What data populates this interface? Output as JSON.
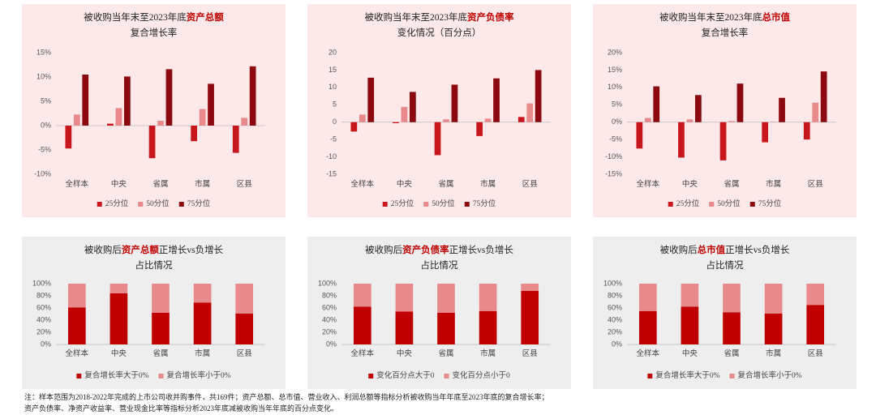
{
  "chart_data": [
    {
      "type": "bar",
      "background": "#fde9e9",
      "title_lines": [
        [
          {
            "text": "被收购当年末至2023年底",
            "highlight": false
          },
          {
            "text": "资产总额",
            "highlight": true
          }
        ],
        [
          {
            "text": "复合增长率",
            "highlight": false
          }
        ]
      ],
      "categories": [
        "全样本",
        "中央",
        "省属",
        "市属",
        "区县"
      ],
      "series": [
        {
          "name": "25分位",
          "color": "#c8171c",
          "values": [
            -4.7,
            0.4,
            -6.7,
            -3.2,
            -5.6
          ]
        },
        {
          "name": "50分位",
          "color": "#e8898b",
          "values": [
            2.3,
            3.6,
            1.0,
            3.4,
            1.6
          ]
        },
        {
          "name": "75分位",
          "color": "#8c0a0f",
          "values": [
            10.5,
            10.1,
            11.6,
            8.6,
            12.2
          ]
        }
      ],
      "ylim": [
        -10,
        15
      ],
      "yticks": [
        {
          "value": -10,
          "label": "-10%"
        },
        {
          "value": -5,
          "label": "-5%"
        },
        {
          "value": 0,
          "label": "0%"
        },
        {
          "value": 5,
          "label": "5%"
        },
        {
          "value": 10,
          "label": "10%"
        },
        {
          "value": 15,
          "label": "15%"
        }
      ]
    },
    {
      "type": "bar",
      "background": "#fde9e9",
      "title_lines": [
        [
          {
            "text": "被收购当年末至2023年底",
            "highlight": false
          },
          {
            "text": "资产负债率",
            "highlight": true
          }
        ],
        [
          {
            "text": "变化情况（百分点）",
            "highlight": false
          }
        ]
      ],
      "categories": [
        "全样本",
        "中央",
        "省属",
        "市属",
        "区县"
      ],
      "series": [
        {
          "name": "25分位",
          "color": "#c8171c",
          "values": [
            -2.7,
            -0.3,
            -9.5,
            -4.0,
            1.5
          ]
        },
        {
          "name": "50分位",
          "color": "#e8898b",
          "values": [
            2.2,
            4.4,
            0.8,
            1.0,
            5.4
          ]
        },
        {
          "name": "75分位",
          "color": "#8c0a0f",
          "values": [
            12.8,
            8.7,
            10.8,
            12.6,
            15.0
          ]
        }
      ],
      "ylim": [
        -15,
        20
      ],
      "yticks": [
        -15,
        -10,
        -5,
        0,
        5,
        10,
        15,
        20
      ]
    },
    {
      "type": "bar",
      "background": "#fde9e9",
      "title_lines": [
        [
          {
            "text": "被收购当年末至2023年底",
            "highlight": false
          },
          {
            "text": "总市值",
            "highlight": true
          }
        ],
        [
          {
            "text": "复合增长率",
            "highlight": false
          }
        ]
      ],
      "categories": [
        "全样本",
        "中央",
        "省属",
        "市属",
        "区县"
      ],
      "series": [
        {
          "name": "25分位",
          "color": "#c8171c",
          "values": [
            -7.6,
            -10.2,
            -11.0,
            -5.8,
            -5.0
          ]
        },
        {
          "name": "50分位",
          "color": "#e8898b",
          "values": [
            1.2,
            0.8,
            0.3,
            0.1,
            5.6
          ]
        },
        {
          "name": "75分位",
          "color": "#8c0a0f",
          "values": [
            10.3,
            7.8,
            11.1,
            7.0,
            14.6
          ]
        }
      ],
      "ylim": [
        -15,
        20
      ],
      "yticks": [
        {
          "value": -15,
          "label": "-15%"
        },
        {
          "value": -10,
          "label": "-10%"
        },
        {
          "value": -5,
          "label": "-5%"
        },
        {
          "value": 0,
          "label": "0%"
        },
        {
          "value": 5,
          "label": "5%"
        },
        {
          "value": 10,
          "label": "10%"
        },
        {
          "value": 15,
          "label": "15%"
        },
        {
          "value": 20,
          "label": "20%"
        }
      ]
    },
    {
      "type": "stacked_bar",
      "background": "#eeeeee",
      "title_lines": [
        [
          {
            "text": "被收购后",
            "highlight": false
          },
          {
            "text": "资产总额",
            "highlight": true
          },
          {
            "text": "正增长vs负增长",
            "highlight": false
          }
        ],
        [
          {
            "text": "占比情况",
            "highlight": false
          }
        ]
      ],
      "categories": [
        "全样本",
        "中央",
        "省属",
        "市属",
        "区县"
      ],
      "series": [
        {
          "name": "复合增长率大于0%",
          "color": "#c00000",
          "values": [
            61,
            84,
            52,
            69,
            51
          ]
        },
        {
          "name": "复合增长率小于0%",
          "color": "#e8898b",
          "values": [
            39,
            16,
            48,
            31,
            49
          ]
        }
      ],
      "ylim": [
        0,
        100
      ],
      "yticks": [
        {
          "value": 0,
          "label": "0%"
        },
        {
          "value": 20,
          "label": "20%"
        },
        {
          "value": 40,
          "label": "40%"
        },
        {
          "value": 60,
          "label": "60%"
        },
        {
          "value": 80,
          "label": "80%"
        },
        {
          "value": 100,
          "label": "100%"
        }
      ]
    },
    {
      "type": "stacked_bar",
      "background": "#eeeeee",
      "title_lines": [
        [
          {
            "text": "被收购后",
            "highlight": false
          },
          {
            "text": "资产负债率",
            "highlight": true
          },
          {
            "text": "正增长vs负增长",
            "highlight": false
          }
        ],
        [
          {
            "text": "占比情况",
            "highlight": false
          }
        ]
      ],
      "categories": [
        "全样本",
        "中央",
        "省属",
        "市属",
        "区县"
      ],
      "series": [
        {
          "name": "变化百分点大于0",
          "color": "#c00000",
          "values": [
            62,
            54,
            52,
            55,
            88
          ]
        },
        {
          "name": "变化百分点小于0",
          "color": "#e8898b",
          "values": [
            38,
            46,
            48,
            45,
            12
          ]
        }
      ],
      "ylim": [
        0,
        100
      ],
      "yticks": [
        {
          "value": 0,
          "label": "0%"
        },
        {
          "value": 20,
          "label": "20%"
        },
        {
          "value": 40,
          "label": "40%"
        },
        {
          "value": 60,
          "label": "60%"
        },
        {
          "value": 80,
          "label": "80%"
        },
        {
          "value": 100,
          "label": "100%"
        }
      ]
    },
    {
      "type": "stacked_bar",
      "background": "#eeeeee",
      "title_lines": [
        [
          {
            "text": "被收购后",
            "highlight": false
          },
          {
            "text": "总市值",
            "highlight": true
          },
          {
            "text": "正增长vs负增长",
            "highlight": false
          }
        ],
        [
          {
            "text": "占比情况",
            "highlight": false
          }
        ]
      ],
      "categories": [
        "全样本",
        "中央",
        "省属",
        "市属",
        "区县"
      ],
      "series": [
        {
          "name": "复合增长率大于0%",
          "color": "#c00000",
          "values": [
            55,
            62,
            53,
            51,
            65
          ]
        },
        {
          "name": "复合增长率小于0%",
          "color": "#e8898b",
          "values": [
            45,
            38,
            47,
            49,
            35
          ]
        }
      ],
      "ylim": [
        0,
        100
      ],
      "yticks": [
        {
          "value": 0,
          "label": "0%"
        },
        {
          "value": 20,
          "label": "20%"
        },
        {
          "value": 40,
          "label": "40%"
        },
        {
          "value": 60,
          "label": "60%"
        },
        {
          "value": 80,
          "label": "80%"
        },
        {
          "value": 100,
          "label": "100%"
        }
      ]
    }
  ],
  "footnote": [
    "注：样本范围为2018-2022年完成的上市公司收并购事件，共169件；资产总额、总市值、营业收入、利润总额等指标分析被收购当年年底至2023年底的复合增长率；",
    "资产负债率、净资产收益率、营业现金比率等指标分析2023年底减被收购当年年底的百分点变化。"
  ]
}
